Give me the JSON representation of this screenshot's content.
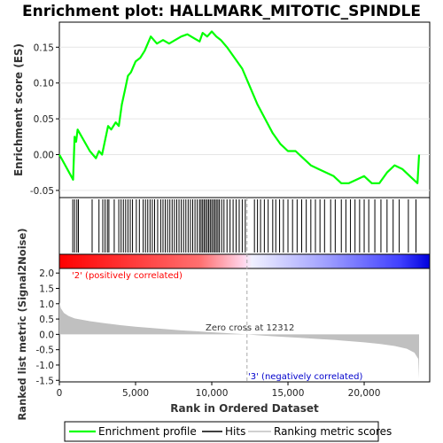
{
  "title": "Enrichment plot: HALLMARK_MITOTIC_SPINDLE",
  "colors": {
    "es_line": "#00ff00",
    "hits": "#000000",
    "metric_fill": "#c0c0c0",
    "pos_label": "#ff0000",
    "neg_label": "#0000cc",
    "zero_line": "#aaaaaa"
  },
  "chart_data": [
    {
      "type": "line",
      "name": "enrichment-score",
      "ylabel": "Enrichment score (ES)",
      "xlim": [
        0,
        24300
      ],
      "ylim": [
        -0.06,
        0.185
      ],
      "yticks": [
        -0.05,
        0.0,
        0.05,
        0.1,
        0.15
      ],
      "ytick_labels": [
        "-0.05",
        "0.00",
        "0.05",
        "0.10",
        "0.15"
      ],
      "grid": true,
      "x": [
        0,
        900,
        1000,
        1100,
        1200,
        2000,
        2400,
        2600,
        2800,
        3000,
        3200,
        3400,
        3700,
        3900,
        4100,
        4300,
        4500,
        4700,
        5000,
        5300,
        5600,
        6000,
        6400,
        6800,
        7200,
        7600,
        8000,
        8400,
        8800,
        9200,
        9400,
        9700,
        10000,
        10300,
        10600,
        11000,
        11500,
        12000,
        12500,
        13000,
        13500,
        14000,
        14500,
        15000,
        15500,
        16000,
        16500,
        17000,
        17500,
        18000,
        18500,
        19000,
        19500,
        20000,
        20500,
        21000,
        21500,
        22000,
        22500,
        23000,
        23500,
        23600
      ],
      "y": [
        0.0,
        -0.035,
        0.025,
        0.018,
        0.035,
        0.005,
        -0.005,
        0.005,
        0.0,
        0.02,
        0.04,
        0.035,
        0.045,
        0.04,
        0.07,
        0.09,
        0.11,
        0.115,
        0.13,
        0.135,
        0.145,
        0.165,
        0.155,
        0.16,
        0.155,
        0.16,
        0.165,
        0.168,
        0.163,
        0.158,
        0.17,
        0.165,
        0.172,
        0.165,
        0.16,
        0.15,
        0.135,
        0.12,
        0.095,
        0.07,
        0.05,
        0.03,
        0.015,
        0.005,
        0.005,
        -0.005,
        -0.015,
        -0.02,
        -0.025,
        -0.03,
        -0.04,
        -0.04,
        -0.035,
        -0.03,
        -0.04,
        -0.04,
        -0.025,
        -0.015,
        -0.02,
        -0.03,
        -0.04,
        0.0
      ]
    },
    {
      "type": "scatter",
      "name": "hits",
      "x": [
        880,
        1000,
        1150,
        1250,
        2150,
        2600,
        2850,
        3000,
        3150,
        3250,
        3600,
        3900,
        4050,
        4200,
        4350,
        4500,
        4650,
        4800,
        5050,
        5250,
        5500,
        5650,
        5800,
        5950,
        6100,
        6250,
        6450,
        6650,
        6800,
        6950,
        7100,
        7250,
        7400,
        7550,
        7700,
        7850,
        8000,
        8150,
        8300,
        8450,
        8600,
        8750,
        8900,
        9050,
        9200,
        9300,
        9400,
        9500,
        9600,
        9700,
        9800,
        9900,
        10000,
        10100,
        10200,
        10300,
        10400,
        10500,
        10650,
        10800,
        11000,
        11200,
        11400,
        11600,
        11800,
        12000,
        12200,
        12800,
        13000,
        13200,
        13450,
        13700,
        14000,
        14200,
        14450,
        14700,
        15000,
        15300,
        15600,
        15900,
        16200,
        16500,
        16800,
        17100,
        17400,
        17800,
        18100,
        18500,
        18800,
        19100,
        19400,
        19700,
        20000,
        20300,
        20700,
        21100,
        21500,
        21900,
        22300,
        22900,
        23400
      ]
    },
    {
      "type": "area",
      "name": "ranked-metric",
      "xlabel": "Rank in Ordered Dataset",
      "ylabel": "Ranked list metric (Signal2Noise)",
      "xlim": [
        0,
        24300
      ],
      "ylim": [
        -1.55,
        2.15
      ],
      "xticks": [
        0,
        5000,
        10000,
        15000,
        20000
      ],
      "xtick_labels": [
        "0",
        "5,000",
        "10,000",
        "15,000",
        "20,000"
      ],
      "yticks": [
        -1.5,
        -1.0,
        -0.5,
        0.0,
        0.5,
        1.0,
        1.5,
        2.0
      ],
      "ytick_labels": [
        "-1.5",
        "-1.0",
        "-0.5",
        "0.0",
        "0.5",
        "1.0",
        "1.5",
        "2.0"
      ],
      "x": [
        0,
        100,
        300,
        600,
        1000,
        2000,
        3000,
        4000,
        5000,
        6000,
        7000,
        8000,
        9000,
        10000,
        11000,
        12312,
        13000,
        14000,
        15000,
        16000,
        17000,
        18000,
        19000,
        20000,
        21000,
        22000,
        22800,
        23300,
        23550,
        23600
      ],
      "y": [
        1.05,
        0.85,
        0.7,
        0.6,
        0.52,
        0.43,
        0.36,
        0.3,
        0.25,
        0.21,
        0.17,
        0.13,
        0.1,
        0.07,
        0.04,
        0.0,
        -0.03,
        -0.06,
        -0.09,
        -0.12,
        -0.15,
        -0.18,
        -0.22,
        -0.26,
        -0.31,
        -0.38,
        -0.47,
        -0.6,
        -0.8,
        -1.45
      ],
      "zero_cross_label": "Zero cross at 12312",
      "zero_cross_rank": 12312,
      "pos_label": "'2' (positively correlated)",
      "neg_label": "'3' (negatively correlated)"
    }
  ],
  "legend": {
    "items": [
      {
        "label": "Enrichment profile",
        "color": "#00ff00"
      },
      {
        "label": "Hits",
        "color": "#000000"
      },
      {
        "label": "Ranking metric scores",
        "color": "#c0c0c0"
      }
    ]
  }
}
